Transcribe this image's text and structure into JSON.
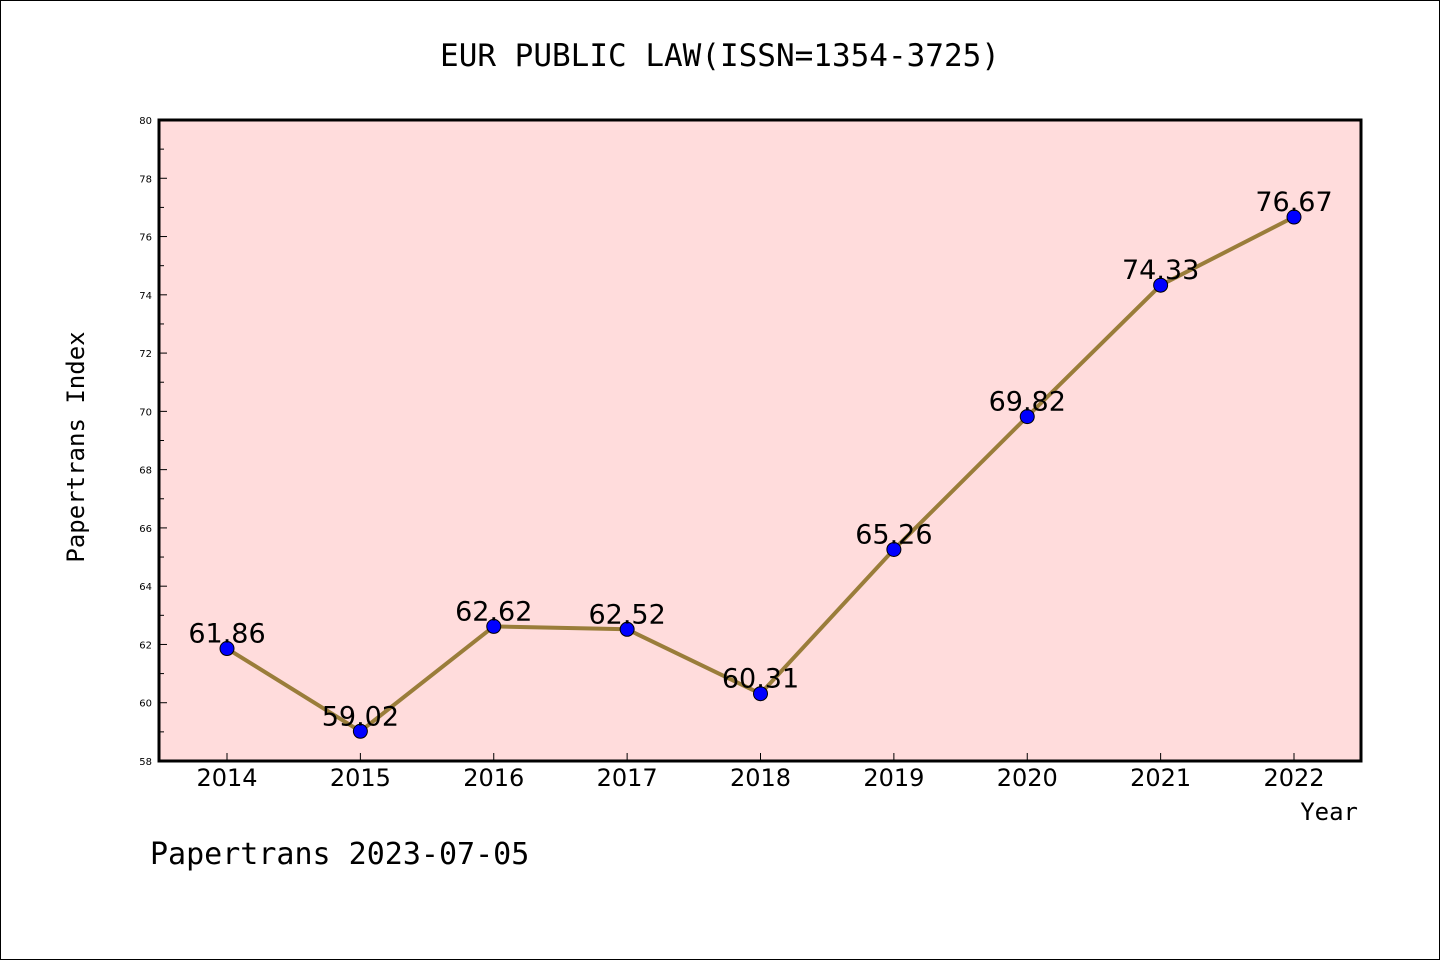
{
  "chart_data": {
    "type": "line",
    "title": "EUR PUBLIC LAW(ISSN=1354-3725)",
    "xlabel": "Year",
    "ylabel": "Papertrans Index",
    "categories": [
      "2014",
      "2015",
      "2016",
      "2017",
      "2018",
      "2019",
      "2020",
      "2021",
      "2022"
    ],
    "values": [
      61.86,
      59.02,
      62.62,
      62.52,
      60.31,
      65.26,
      69.82,
      74.33,
      76.67
    ],
    "data_labels": [
      "61.86",
      "59.02",
      "62.62",
      "62.52",
      "60.31",
      "65.26",
      "69.82",
      "74.33",
      "76.67"
    ],
    "ylim": [
      58,
      80
    ],
    "yticks": [
      58,
      60,
      62,
      64,
      66,
      68,
      70,
      72,
      74,
      76,
      78,
      80
    ],
    "grid": false,
    "colors": {
      "plot_background": "#ffdcdc",
      "line": "#9a7d3a",
      "marker": "#0000ff"
    }
  },
  "footer": {
    "text": "Papertrans 2023-07-05"
  }
}
